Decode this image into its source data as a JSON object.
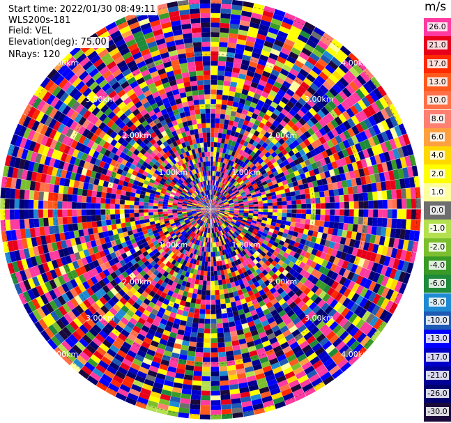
{
  "header": {
    "start_time": "Start time: 2022/01/30 08:49:11",
    "instrument": "WLS200s-181",
    "field": "Field: VEL",
    "elevation": "Elevation(deg): 75.00",
    "nrays": "NRays: 120"
  },
  "colorbar": {
    "unit": "m/s",
    "levels": [
      {
        "label": "26.0",
        "color": "#ff3aa0"
      },
      {
        "label": "21.0",
        "color": "#e8001a"
      },
      {
        "label": "17.0",
        "color": "#ff2a00"
      },
      {
        "label": "13.0",
        "color": "#ff5a1e"
      },
      {
        "label": "10.0",
        "color": "#ff7048"
      },
      {
        "label": "8.0",
        "color": "#ff8070"
      },
      {
        "label": "6.0",
        "color": "#ffa040"
      },
      {
        "label": "4.0",
        "color": "#ffd800"
      },
      {
        "label": "2.0",
        "color": "#ffff00"
      },
      {
        "label": "1.0",
        "color": "#ffffa0"
      },
      {
        "label": "0.0",
        "color": "#6e6e6e"
      },
      {
        "label": "-1.0",
        "color": "#b4e050"
      },
      {
        "label": "-2.0",
        "color": "#7cbf2e"
      },
      {
        "label": "-4.0",
        "color": "#3a9a28"
      },
      {
        "label": "-6.0",
        "color": "#1e8a3a"
      },
      {
        "label": "-8.0",
        "color": "#1e8ad2"
      },
      {
        "label": "-10.0",
        "color": "#1e5ab4"
      },
      {
        "label": "-13.0",
        "color": "#0000ff"
      },
      {
        "label": "-17.0",
        "color": "#0000c8"
      },
      {
        "label": "-21.0",
        "color": "#000096"
      },
      {
        "label": "-26.0",
        "color": "#00006e"
      },
      {
        "label": "-30.0",
        "color": "#1a0a3c"
      }
    ]
  },
  "chart_data": {
    "type": "heatmap",
    "projection": "polar PPI",
    "field": "VEL",
    "unit": "m/s",
    "nrays": 120,
    "ring_labels": [
      "1.00km",
      "2.00km",
      "3.00km",
      "4.00km"
    ],
    "ring_distances_km": [
      1,
      2,
      3,
      4
    ],
    "vmin": -30.0,
    "vmax": 26.0
  }
}
